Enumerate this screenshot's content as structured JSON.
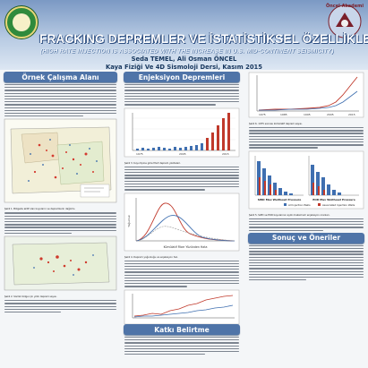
{
  "header": {
    "title": "FRACKING DEPREMLER VE İSTATİSTİKSEL ÖZELLİKLERİ",
    "subtitle": "(HIGH RATE INJECTION IS ASSOCIATED WITH THE INCREASE IN U.S. MID-CONTINENT SEISMICITY)",
    "authors": "Seda TEMEL, Ali Osman ÖNCEL",
    "affiliation": "Kaya Fiziği Ve 4D Sismoloji Dersi, Kasım 2015",
    "right_logo_text": "Öncel Akademi"
  },
  "sections": {
    "intro": "Örnek Çalışma Alanı",
    "injection": "Enjeksiyon Depremleri",
    "conclusion": "Sonuç ve Öneriler",
    "contribution": "Katkı Belirtme"
  },
  "figures": {
    "fig1_caption": "Şekil 1. Bölgede aktif olan kuyuların ve depremlerin dağılımı.",
    "fig2_caption": "Şekil 2. Sismik bölge için yıllık deprem sayısı.",
    "fig3_caption": "Şekil 3. Kuyu tipine göre M≥3 deprem yüzdeleri.",
    "fig4_caption": "Şekil 4. Deprem yoğunluğu ve enjeksiyon hızı.",
    "fig5_caption": "Şekil 5. SWD ve EOR kuyularının aylık maksimum enjeksiyon oranları.",
    "fig6_caption": "Şekil 6. 1975 sonrası kümülatif deprem sayısı.",
    "kde_xlabel": "Kümülatif Fiber Yüzünden Hata",
    "kde_ylabel": "Yoğunluk",
    "swd_label": "SWD Max Wellhead Pressure",
    "eor_label": "EOR Max Wellhead Pressure",
    "legend_inj": "All Injection Wells",
    "legend_assoc": "Associated Injection Wells",
    "yr1": "1975",
    "yr2": "1985",
    "yr3": "1995",
    "yr4": "2005",
    "yr5": "2015"
  },
  "colors": {
    "banner": "#4f74a8",
    "header_top": "#7b99c4",
    "bar_red": "#c0392b",
    "bar_blue": "#3f6fb0"
  }
}
